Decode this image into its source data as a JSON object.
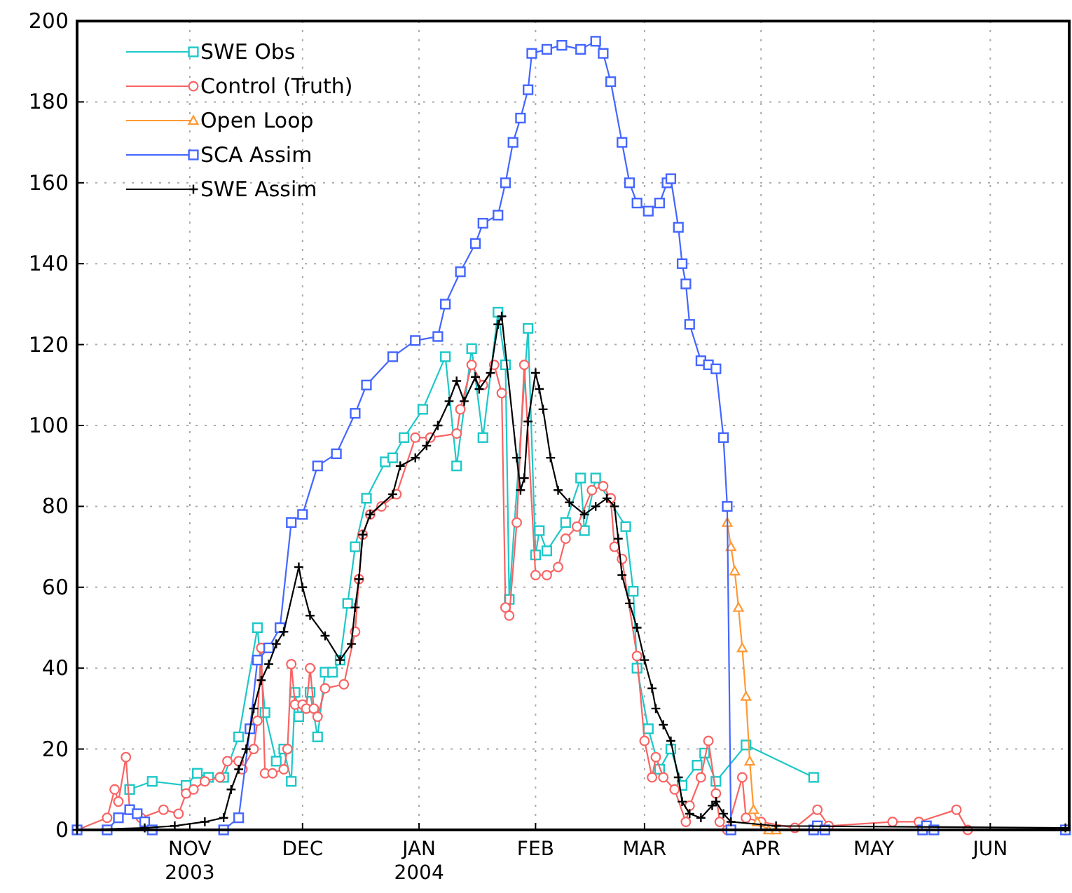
{
  "chart_data": {
    "type": "line",
    "xlim": [
      "2003-10-02",
      "2004-06-22"
    ],
    "ylim": [
      0,
      200
    ],
    "yticks": [
      0,
      20,
      40,
      60,
      80,
      100,
      120,
      140,
      160,
      180,
      200
    ],
    "xticks": [
      {
        "value": "2003-11-01",
        "label": "NOV\n2003"
      },
      {
        "value": "2003-12-01",
        "label": "DEC"
      },
      {
        "value": "2004-01-01",
        "label": "JAN\n2004"
      },
      {
        "value": "2004-02-01",
        "label": "FEB"
      },
      {
        "value": "2004-03-01",
        "label": "MAR"
      },
      {
        "value": "2004-04-01",
        "label": "APR"
      },
      {
        "value": "2004-05-01",
        "label": "MAY"
      },
      {
        "value": "2004-06-01",
        "label": "JUN"
      }
    ],
    "grid": true,
    "legend": "top left",
    "line_style": "solid",
    "series": [
      {
        "name": "SWE Obs",
        "color": "#1ec8c8",
        "marker": "square",
        "x": [
          "2003-10-16",
          "2003-10-22",
          "2003-10-31",
          "2003-11-03",
          "2003-11-06",
          "2003-11-10",
          "2003-11-14",
          "2003-11-19",
          "2003-11-21",
          "2003-11-24",
          "2003-11-26",
          "2003-11-28",
          "2003-11-29",
          "2003-11-30",
          "2003-12-03",
          "2003-12-05",
          "2003-12-07",
          "2003-12-09",
          "2003-12-11",
          "2003-12-13",
          "2003-12-15",
          "2003-12-18",
          "2003-12-23",
          "2003-12-25",
          "2003-12-28",
          "2004-01-02",
          "2004-01-08",
          "2004-01-11",
          "2004-01-15",
          "2004-01-18",
          "2004-01-22",
          "2004-01-24",
          "2004-01-25",
          "2004-01-30",
          "2004-02-01",
          "2004-02-02",
          "2004-02-04",
          "2004-02-09",
          "2004-02-13",
          "2004-02-14",
          "2004-02-17",
          "2004-02-25",
          "2004-02-27",
          "2004-02-28",
          "2004-03-02",
          "2004-03-05",
          "2004-03-08",
          "2004-03-11",
          "2004-03-15",
          "2004-03-17",
          "2004-03-20",
          "2004-03-28",
          "2004-04-15"
        ],
        "values": [
          10,
          12,
          11,
          14,
          13,
          13,
          23,
          50,
          29,
          17,
          20,
          12,
          34,
          28,
          34,
          23,
          39,
          39,
          42,
          56,
          70,
          82,
          91,
          92,
          97,
          104,
          117,
          90,
          119,
          97,
          128,
          115,
          57,
          124,
          68,
          74,
          69,
          76,
          87,
          74,
          87,
          75,
          59,
          40,
          25,
          15,
          20,
          11,
          16,
          19,
          12,
          21,
          13
        ]
      },
      {
        "name": "Control (Truth)",
        "color": "#f86464",
        "marker": "circle",
        "x": [
          "2003-10-02",
          "2003-10-10",
          "2003-10-12",
          "2003-10-13",
          "2003-10-15",
          "2003-10-16",
          "2003-10-19",
          "2003-10-25",
          "2003-10-29",
          "2003-10-31",
          "2003-11-02",
          "2003-11-05",
          "2003-11-09",
          "2003-11-11",
          "2003-11-14",
          "2003-11-15",
          "2003-11-18",
          "2003-11-19",
          "2003-11-20",
          "2003-11-21",
          "2003-11-23",
          "2003-11-26",
          "2003-11-27",
          "2003-11-28",
          "2003-11-29",
          "2003-12-01",
          "2003-12-02",
          "2003-12-03",
          "2003-12-04",
          "2003-12-05",
          "2003-12-07",
          "2003-12-12",
          "2003-12-15",
          "2003-12-16",
          "2003-12-17",
          "2003-12-19",
          "2003-12-22",
          "2003-12-26",
          "2003-12-31",
          "2004-01-04",
          "2004-01-11",
          "2004-01-12",
          "2004-01-15",
          "2004-01-18",
          "2004-01-21",
          "2004-01-23",
          "2004-01-24",
          "2004-01-25",
          "2004-01-27",
          "2004-01-29",
          "2004-02-01",
          "2004-02-04",
          "2004-02-07",
          "2004-02-09",
          "2004-02-12",
          "2004-02-16",
          "2004-02-19",
          "2004-02-21",
          "2004-02-22",
          "2004-02-24",
          "2004-02-28",
          "2004-03-01",
          "2004-03-03",
          "2004-03-04",
          "2004-03-06",
          "2004-03-09",
          "2004-03-12",
          "2004-03-13",
          "2004-03-16",
          "2004-03-18",
          "2004-03-20",
          "2004-03-21",
          "2004-03-23",
          "2004-03-27",
          "2004-03-28",
          "2004-04-01",
          "2004-04-10",
          "2004-04-16",
          "2004-04-19",
          "2004-05-06",
          "2004-05-13",
          "2004-05-23",
          "2004-05-26",
          "2004-06-21"
        ],
        "values": [
          0,
          3,
          10,
          7,
          18,
          5,
          3,
          5,
          4,
          9,
          10,
          12,
          13,
          17,
          17,
          15,
          20,
          27,
          45,
          14,
          14,
          15,
          20,
          41,
          31,
          31,
          30,
          40,
          30,
          28,
          35,
          36,
          49,
          62,
          73,
          78,
          80,
          83,
          97,
          97,
          98,
          104,
          115,
          110,
          115,
          108,
          55,
          53,
          76,
          115,
          63,
          63,
          65,
          72,
          75,
          84,
          85,
          82,
          70,
          67,
          43,
          22,
          13,
          18,
          13,
          10,
          2,
          6,
          13,
          22,
          9,
          2,
          0,
          13,
          3,
          2,
          0.5,
          5,
          1,
          2,
          2,
          5,
          0,
          0
        ]
      },
      {
        "name": "Open Loop",
        "color": "#ff9933",
        "marker": "triangle",
        "x": [
          "2004-03-23",
          "2004-03-24",
          "2004-03-25",
          "2004-03-26",
          "2004-03-27",
          "2004-03-28",
          "2004-03-29",
          "2004-03-30",
          "2004-03-31",
          "2004-04-03",
          "2004-04-05"
        ],
        "values": [
          76,
          70,
          64,
          55,
          45,
          33,
          17,
          5,
          2,
          0,
          0
        ]
      },
      {
        "name": "SCA Assim",
        "color": "#4466ff",
        "marker": "square",
        "x": [
          "2003-10-02",
          "2003-10-10",
          "2003-10-13",
          "2003-10-16",
          "2003-10-18",
          "2003-10-20",
          "2003-10-22",
          "2003-11-10",
          "2003-11-14",
          "2003-11-17",
          "2003-11-19",
          "2003-11-22",
          "2003-11-25",
          "2003-11-28",
          "2003-12-01",
          "2003-12-05",
          "2003-12-10",
          "2003-12-15",
          "2003-12-18",
          "2003-12-25",
          "2003-12-31",
          "2004-01-06",
          "2004-01-08",
          "2004-01-12",
          "2004-01-16",
          "2004-01-18",
          "2004-01-22",
          "2004-01-24",
          "2004-01-26",
          "2004-01-28",
          "2004-01-30",
          "2004-01-31",
          "2004-02-04",
          "2004-02-08",
          "2004-02-13",
          "2004-02-17",
          "2004-02-19",
          "2004-02-21",
          "2004-02-24",
          "2004-02-26",
          "2004-02-28",
          "2004-03-02",
          "2004-03-05",
          "2004-03-07",
          "2004-03-08",
          "2004-03-10",
          "2004-03-11",
          "2004-03-12",
          "2004-03-13",
          "2004-03-16",
          "2004-03-18",
          "2004-03-20",
          "2004-03-22",
          "2004-03-23",
          "2004-03-24",
          "2004-04-15",
          "2004-04-16",
          "2004-04-18",
          "2004-05-14",
          "2004-05-15",
          "2004-05-17",
          "2004-06-21"
        ],
        "values": [
          0,
          0,
          3,
          5,
          4,
          2,
          0,
          0,
          3,
          25,
          42,
          45,
          50,
          76,
          78,
          90,
          93,
          103,
          110,
          117,
          121,
          122,
          130,
          138,
          145,
          150,
          152,
          160,
          170,
          176,
          183,
          192,
          193,
          194,
          193,
          195,
          192,
          185,
          170,
          160,
          155,
          153,
          155,
          160,
          161,
          149,
          140,
          135,
          125,
          116,
          115,
          114,
          97,
          80,
          0,
          0,
          1,
          0,
          0,
          1,
          0,
          0
        ]
      },
      {
        "name": "SWE Assim",
        "color": "#000000",
        "marker": "cross",
        "x": [
          "2003-10-02",
          "2003-10-20",
          "2003-10-28",
          "2003-11-05",
          "2003-11-10",
          "2003-11-12",
          "2003-11-14",
          "2003-11-16",
          "2003-11-18",
          "2003-11-20",
          "2003-11-22",
          "2003-11-24",
          "2003-11-26",
          "2003-11-30",
          "2003-12-01",
          "2003-12-03",
          "2003-12-07",
          "2003-12-11",
          "2003-12-14",
          "2003-12-15",
          "2003-12-16",
          "2003-12-17",
          "2003-12-19",
          "2003-12-25",
          "2003-12-27",
          "2003-12-31",
          "2004-01-03",
          "2004-01-06",
          "2004-01-09",
          "2004-01-11",
          "2004-01-13",
          "2004-01-16",
          "2004-01-17",
          "2004-01-20",
          "2004-01-22",
          "2004-01-23",
          "2004-01-27",
          "2004-01-28",
          "2004-01-29",
          "2004-01-30",
          "2004-02-01",
          "2004-02-02",
          "2004-02-03",
          "2004-02-05",
          "2004-02-07",
          "2004-02-10",
          "2004-02-14",
          "2004-02-17",
          "2004-02-20",
          "2004-02-22",
          "2004-02-23",
          "2004-02-24",
          "2004-02-26",
          "2004-02-28",
          "2004-03-01",
          "2004-03-03",
          "2004-03-04",
          "2004-03-06",
          "2004-03-08",
          "2004-03-10",
          "2004-03-11",
          "2004-03-13",
          "2004-03-16",
          "2004-03-19",
          "2004-03-20",
          "2004-03-22",
          "2004-03-24",
          "2004-04-05",
          "2004-06-21"
        ],
        "values": [
          0,
          0.5,
          1,
          2,
          3,
          10,
          15,
          20,
          30,
          37,
          41,
          46,
          49,
          65,
          60,
          53,
          48,
          42,
          46,
          55,
          62,
          73,
          78,
          83,
          90,
          92,
          95,
          100,
          106,
          111,
          106,
          112,
          109,
          113,
          125,
          127,
          92,
          84,
          87,
          101,
          113,
          109,
          104,
          92,
          84,
          81,
          78,
          80,
          82,
          80,
          72,
          63,
          56,
          50,
          42,
          35,
          30,
          26,
          22,
          13,
          7,
          4,
          3,
          6,
          7,
          4,
          2,
          1,
          0.5
        ]
      }
    ]
  }
}
